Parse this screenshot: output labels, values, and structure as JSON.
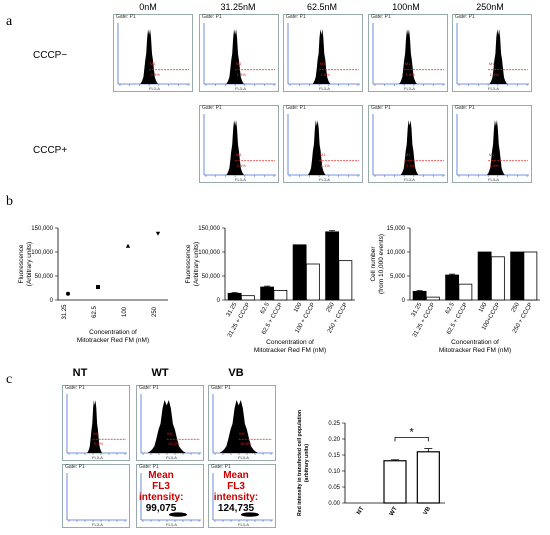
{
  "panels": {
    "a": "a",
    "b": "b",
    "c": "c"
  },
  "panel_a": {
    "columns": [
      "0nM",
      "31.25nM",
      "62.5nM",
      "100nM",
      "250nM"
    ],
    "rows": [
      "CCCP−",
      "CCCP+"
    ],
    "gate_label": "Gate: P1",
    "x_axis_label": "FL3-A",
    "y_axis_label": "Count",
    "region_label": "M1",
    "top_percents": [
      "0.3%",
      "1.3%",
      "1.6%",
      "1.6%",
      "1.4%"
    ],
    "bottom_percents": [
      "0.1%",
      "1.1%",
      "0.1%",
      "1.0%"
    ]
  },
  "panel_b": {
    "left_ylabel": "Fluorescence\n(Arbitrary units)",
    "middle_ylabel": "Fluorescence\n(Arbitrary units)",
    "right_ylabel": "Cell number\n(from 10,000 events)",
    "xlabel": "Concentration of\nMitotracker Red FM (nM)"
  },
  "panel_c": {
    "columns": [
      "NT",
      "WT",
      "VB"
    ],
    "percents": [
      "0.0%",
      "13.2%",
      "15.5%"
    ],
    "mean_label": "Mean\nFL3\nintensity:",
    "mean_values": [
      "99,075",
      "124,735"
    ],
    "bar_ylabel": "Red intensity in transfected cell population\n(arbitrary units)",
    "significance": "*"
  },
  "chart_data": [
    {
      "type": "scatter",
      "categories": [
        "31.25",
        "62.5",
        "100",
        "250"
      ],
      "values": [
        13000,
        27000,
        113000,
        138000
      ],
      "ylim": [
        0,
        150000
      ],
      "yticks": [
        "0",
        "50,000",
        "100,000",
        "150,000"
      ],
      "ylabel": "Fluorescence (Arbitrary units)",
      "xlabel": "Concentration of Mitotracker Red FM (nM)"
    },
    {
      "type": "bar",
      "categories": [
        "31.25",
        "31.25 + CCCP",
        "62.5",
        "62.5 + CCCP",
        "100",
        "100 + CCCP",
        "250",
        "250 + CCCP"
      ],
      "values": [
        14000,
        9000,
        27000,
        20000,
        115000,
        75000,
        142000,
        82000
      ],
      "fills": [
        "black",
        "white",
        "black",
        "white",
        "black",
        "white",
        "black",
        "white"
      ],
      "errors": [
        1500,
        0,
        2000,
        0,
        0,
        0,
        2500,
        0
      ],
      "ylim": [
        0,
        150000
      ],
      "yticks": [
        "0",
        "50,000",
        "100,000",
        "150,000"
      ],
      "ylabel": "Fluorescence (Arbitrary units)",
      "xlabel": "Concentration of Mitotracker Red FM (nM)"
    },
    {
      "type": "bar",
      "categories": [
        "31.25",
        "31.25 + CCCP",
        "62.5",
        "62.5 + CCCP",
        "100",
        "100+CCCP",
        "250",
        "250 + CCCP"
      ],
      "values": [
        1800,
        600,
        5200,
        3300,
        10000,
        9000,
        10000,
        10000
      ],
      "fills": [
        "black",
        "white",
        "black",
        "white",
        "black",
        "white",
        "black",
        "white"
      ],
      "errors": [
        200,
        0,
        200,
        0,
        0,
        0,
        0,
        0
      ],
      "ylim": [
        0,
        15000
      ],
      "yticks": [
        "0",
        "5,000",
        "10,000",
        "15,000"
      ],
      "ylabel": "Cell number (from 10,000 events)",
      "xlabel": "Concentration of Mitotracker Red FM (nM)"
    },
    {
      "type": "bar",
      "categories": [
        "NT",
        "WT",
        "VB"
      ],
      "values": [
        0,
        0.132,
        0.16
      ],
      "errors": [
        0,
        0.003,
        0.01
      ],
      "ylim": [
        0,
        0.25
      ],
      "yticks": [
        "0.00",
        "0.05",
        "0.10",
        "0.15",
        "0.20",
        "0.25"
      ],
      "ylabel": "Red intensity in transfected cell population (arbitrary units)",
      "significance": "*"
    }
  ]
}
